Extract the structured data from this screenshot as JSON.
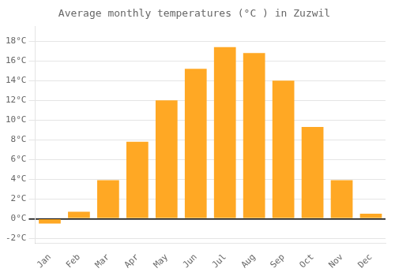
{
  "chart_data": {
    "type": "bar",
    "title": "Average monthly temperatures (°C ) in Zuzwil",
    "categories": [
      "Jan",
      "Feb",
      "Mar",
      "Apr",
      "May",
      "Jun",
      "Jul",
      "Aug",
      "Sep",
      "Oct",
      "Nov",
      "Dec"
    ],
    "values": [
      -0.5,
      0.7,
      3.9,
      7.8,
      12.0,
      15.2,
      17.4,
      16.8,
      14.0,
      9.3,
      3.9,
      0.5
    ],
    "color": "#FFA824",
    "ylim": [
      -2.5,
      19.5
    ],
    "yticks": [
      {
        "value": -2,
        "label": "-2°C"
      },
      {
        "value": 0,
        "label": "0°C"
      },
      {
        "value": 2,
        "label": "2°C"
      },
      {
        "value": 4,
        "label": "4°C"
      },
      {
        "value": 6,
        "label": "6°C"
      },
      {
        "value": 8,
        "label": "8°C"
      },
      {
        "value": 10,
        "label": "10°C"
      },
      {
        "value": 12,
        "label": "12°C"
      },
      {
        "value": 14,
        "label": "14°C"
      },
      {
        "value": 16,
        "label": "16°C"
      },
      {
        "value": 18,
        "label": "18°C"
      }
    ],
    "grid": true
  }
}
